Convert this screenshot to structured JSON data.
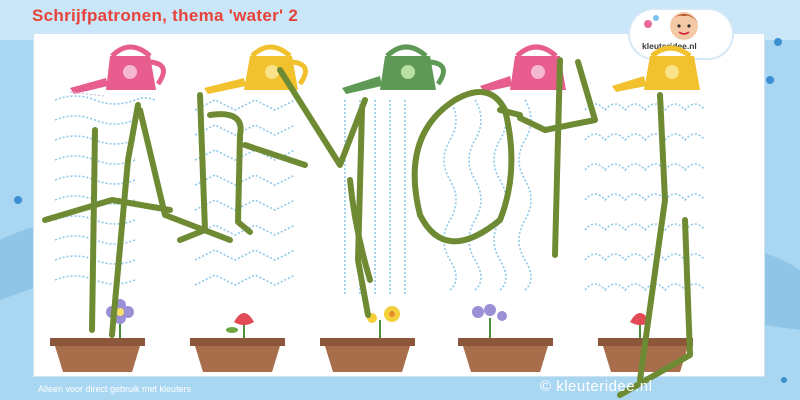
{
  "worksheet": {
    "title": "Schrijfpatronen, thema 'water' 2",
    "badge_text": "kleuteridee.nl",
    "footer_left": "Alleen voor direct gebruik met kleuters",
    "footer_right": "© kleuteridee.nl"
  },
  "columns": [
    {
      "can_color": "#e65d8e",
      "pattern": "loops",
      "flower": "purple-flower"
    },
    {
      "can_color": "#f2c12e",
      "pattern": "zigzag",
      "flower": "red-tulip"
    },
    {
      "can_color": "#5e9a56",
      "pattern": "straight-lines",
      "flower": "yellow-flower"
    },
    {
      "can_color": "#e65d8e",
      "pattern": "waves",
      "flower": "purple-flower"
    },
    {
      "can_color": "#f2c12e",
      "pattern": "arches",
      "flower": "red-tulip"
    }
  ],
  "colors": {
    "background": "#9fd0ee",
    "trace_line": "#8ec8ea",
    "scribble": "#6e8b33",
    "pot": "#a86d4a",
    "title": "#e8433b"
  }
}
